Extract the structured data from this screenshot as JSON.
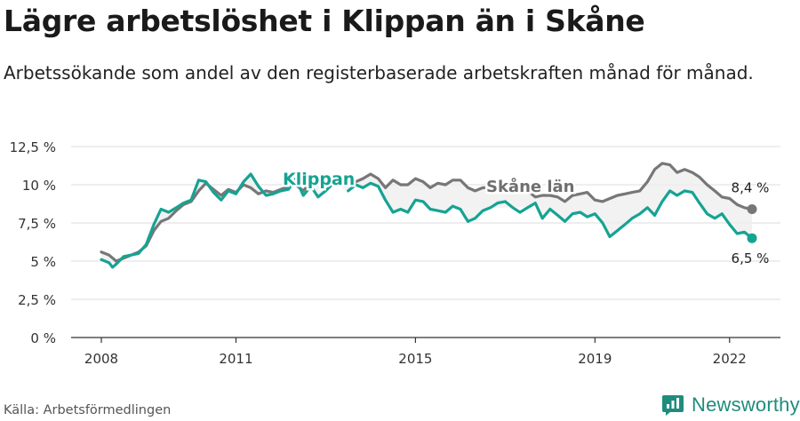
{
  "title": "Lägre arbetslöshet i Klippan än i Skåne",
  "subtitle": "Arbetssökande som andel av den registerbaserade arbetskraften månad för månad.",
  "source": "Källa: Arbetsförmedlingen",
  "brand": "Newsworthy",
  "chart_data": {
    "type": "line",
    "title": "Lägre arbetslöshet i Klippan än i Skåne",
    "subtitle": "Arbetssökande som andel av den registerbaserade arbetskraften månad för månad.",
    "xlabel": "",
    "ylabel": "",
    "xlim": [
      2008,
      2022.5
    ],
    "ylim": [
      0,
      12.5
    ],
    "grid": true,
    "x_ticks": [
      {
        "value": 2008,
        "label": "2008"
      },
      {
        "value": 2011,
        "label": "2011"
      },
      {
        "value": 2015,
        "label": "2015"
      },
      {
        "value": 2019,
        "label": "2019"
      },
      {
        "value": 2022,
        "label": "2022"
      }
    ],
    "y_ticks": [
      {
        "value": 0,
        "label": "0 %"
      },
      {
        "value": 2.5,
        "label": "2,5 %"
      },
      {
        "value": 5,
        "label": "5 %"
      },
      {
        "value": 7.5,
        "label": "7,5 %"
      },
      {
        "value": 10,
        "label": "10 %"
      },
      {
        "value": 12.5,
        "label": "12,5 %"
      }
    ],
    "series": [
      {
        "name": "Skåne län",
        "color": "#777777",
        "end_label": "8,4 %",
        "points": [
          [
            2008.0,
            5.6
          ],
          [
            2008.17,
            5.4
          ],
          [
            2008.33,
            5.0
          ],
          [
            2008.5,
            5.2
          ],
          [
            2008.67,
            5.4
          ],
          [
            2008.83,
            5.6
          ],
          [
            2009.0,
            6.0
          ],
          [
            2009.17,
            7.0
          ],
          [
            2009.33,
            7.6
          ],
          [
            2009.5,
            7.8
          ],
          [
            2009.67,
            8.3
          ],
          [
            2009.83,
            8.7
          ],
          [
            2010.0,
            8.9
          ],
          [
            2010.17,
            9.6
          ],
          [
            2010.33,
            10.1
          ],
          [
            2010.5,
            9.7
          ],
          [
            2010.67,
            9.3
          ],
          [
            2010.83,
            9.7
          ],
          [
            2011.0,
            9.5
          ],
          [
            2011.17,
            10.0
          ],
          [
            2011.33,
            9.8
          ],
          [
            2011.5,
            9.4
          ],
          [
            2011.67,
            9.6
          ],
          [
            2011.83,
            9.5
          ],
          [
            2012.0,
            9.7
          ],
          [
            2012.17,
            9.9
          ],
          [
            2012.33,
            10.0
          ],
          [
            2012.5,
            9.6
          ],
          [
            2012.67,
            10.2
          ],
          [
            2012.83,
            10.0
          ],
          [
            2013.0,
            10.3
          ],
          [
            2013.17,
            10.6
          ],
          [
            2013.33,
            10.4
          ],
          [
            2013.5,
            10.6
          ],
          [
            2013.67,
            10.2
          ],
          [
            2013.83,
            10.4
          ],
          [
            2014.0,
            10.7
          ],
          [
            2014.17,
            10.4
          ],
          [
            2014.33,
            9.8
          ],
          [
            2014.5,
            10.3
          ],
          [
            2014.67,
            10.0
          ],
          [
            2014.83,
            10.0
          ],
          [
            2015.0,
            10.4
          ],
          [
            2015.17,
            10.2
          ],
          [
            2015.33,
            9.8
          ],
          [
            2015.5,
            10.1
          ],
          [
            2015.67,
            10.0
          ],
          [
            2015.83,
            10.3
          ],
          [
            2016.0,
            10.3
          ],
          [
            2016.17,
            9.8
          ],
          [
            2016.33,
            9.6
          ],
          [
            2016.5,
            9.8
          ],
          [
            2016.67,
            9.8
          ],
          [
            2017.5,
            9.6
          ],
          [
            2017.67,
            9.2
          ],
          [
            2017.83,
            9.3
          ],
          [
            2018.0,
            9.3
          ],
          [
            2018.17,
            9.2
          ],
          [
            2018.33,
            8.9
          ],
          [
            2018.5,
            9.3
          ],
          [
            2018.67,
            9.4
          ],
          [
            2018.83,
            9.5
          ],
          [
            2019.0,
            9.0
          ],
          [
            2019.17,
            8.9
          ],
          [
            2019.33,
            9.1
          ],
          [
            2019.5,
            9.3
          ],
          [
            2019.67,
            9.4
          ],
          [
            2019.83,
            9.5
          ],
          [
            2020.0,
            9.6
          ],
          [
            2020.17,
            10.2
          ],
          [
            2020.33,
            11.0
          ],
          [
            2020.5,
            11.4
          ],
          [
            2020.67,
            11.3
          ],
          [
            2020.83,
            10.8
          ],
          [
            2021.0,
            11.0
          ],
          [
            2021.17,
            10.8
          ],
          [
            2021.33,
            10.5
          ],
          [
            2021.5,
            10.0
          ],
          [
            2021.67,
            9.6
          ],
          [
            2021.83,
            9.2
          ],
          [
            2022.0,
            9.1
          ],
          [
            2022.17,
            8.7
          ],
          [
            2022.33,
            8.5
          ],
          [
            2022.5,
            8.4
          ]
        ]
      },
      {
        "name": "Klippan",
        "color": "#16a392",
        "end_label": "6,5 %",
        "points": [
          [
            2008.0,
            5.1
          ],
          [
            2008.17,
            4.9
          ],
          [
            2008.25,
            4.6
          ],
          [
            2008.33,
            4.8
          ],
          [
            2008.5,
            5.3
          ],
          [
            2008.67,
            5.4
          ],
          [
            2008.83,
            5.5
          ],
          [
            2009.0,
            6.1
          ],
          [
            2009.17,
            7.4
          ],
          [
            2009.33,
            8.4
          ],
          [
            2009.5,
            8.2
          ],
          [
            2009.67,
            8.5
          ],
          [
            2009.83,
            8.8
          ],
          [
            2010.0,
            9.0
          ],
          [
            2010.17,
            10.3
          ],
          [
            2010.33,
            10.2
          ],
          [
            2010.5,
            9.5
          ],
          [
            2010.67,
            9.0
          ],
          [
            2010.83,
            9.6
          ],
          [
            2011.0,
            9.4
          ],
          [
            2011.17,
            10.2
          ],
          [
            2011.33,
            10.7
          ],
          [
            2011.5,
            9.9
          ],
          [
            2011.67,
            9.3
          ],
          [
            2011.83,
            9.4
          ],
          [
            2012.0,
            9.6
          ],
          [
            2012.17,
            9.7
          ],
          [
            2012.33,
            10.4
          ],
          [
            2012.5,
            9.3
          ],
          [
            2012.67,
            9.9
          ],
          [
            2012.83,
            9.2
          ],
          [
            2013.0,
            9.6
          ],
          [
            2013.17,
            10.1
          ],
          [
            2013.5,
            9.6
          ],
          [
            2013.67,
            10.0
          ],
          [
            2013.83,
            9.8
          ],
          [
            2014.0,
            10.1
          ],
          [
            2014.17,
            9.9
          ],
          [
            2014.33,
            9.0
          ],
          [
            2014.5,
            8.2
          ],
          [
            2014.67,
            8.4
          ],
          [
            2014.83,
            8.2
          ],
          [
            2015.0,
            9.0
          ],
          [
            2015.17,
            8.9
          ],
          [
            2015.33,
            8.4
          ],
          [
            2015.5,
            8.3
          ],
          [
            2015.67,
            8.2
          ],
          [
            2015.83,
            8.6
          ],
          [
            2016.0,
            8.4
          ],
          [
            2016.17,
            7.6
          ],
          [
            2016.33,
            7.8
          ],
          [
            2016.5,
            8.3
          ],
          [
            2016.67,
            8.5
          ],
          [
            2016.83,
            8.8
          ],
          [
            2017.0,
            8.9
          ],
          [
            2017.17,
            8.5
          ],
          [
            2017.33,
            8.2
          ],
          [
            2017.5,
            8.5
          ],
          [
            2017.67,
            8.8
          ],
          [
            2017.83,
            7.8
          ],
          [
            2018.0,
            8.4
          ],
          [
            2018.17,
            8.0
          ],
          [
            2018.33,
            7.6
          ],
          [
            2018.5,
            8.1
          ],
          [
            2018.67,
            8.2
          ],
          [
            2018.83,
            7.9
          ],
          [
            2019.0,
            8.1
          ],
          [
            2019.17,
            7.5
          ],
          [
            2019.33,
            6.6
          ],
          [
            2019.5,
            7.0
          ],
          [
            2019.67,
            7.4
          ],
          [
            2019.83,
            7.8
          ],
          [
            2020.0,
            8.1
          ],
          [
            2020.17,
            8.5
          ],
          [
            2020.33,
            8.0
          ],
          [
            2020.5,
            8.9
          ],
          [
            2020.67,
            9.6
          ],
          [
            2020.83,
            9.3
          ],
          [
            2021.0,
            9.6
          ],
          [
            2021.17,
            9.5
          ],
          [
            2021.33,
            8.8
          ],
          [
            2021.5,
            8.1
          ],
          [
            2021.67,
            7.8
          ],
          [
            2021.83,
            8.1
          ],
          [
            2022.0,
            7.4
          ],
          [
            2022.17,
            6.8
          ],
          [
            2022.33,
            6.9
          ],
          [
            2022.5,
            6.5
          ]
        ]
      }
    ]
  }
}
